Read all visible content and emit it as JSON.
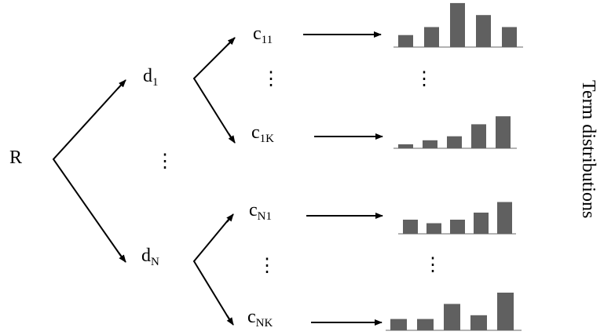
{
  "root": {
    "main": "R",
    "sub": ""
  },
  "level1": [
    {
      "main": "d",
      "sub": "1"
    },
    {
      "main": "d",
      "sub": "N"
    }
  ],
  "level2": [
    {
      "main": "c",
      "sub": "11"
    },
    {
      "main": "c",
      "sub": "1K"
    },
    {
      "main": "c",
      "sub": "N1"
    },
    {
      "main": "c",
      "sub": "NK"
    }
  ],
  "ellipsis": "⋮",
  "side_label": "Term distributions",
  "bar_color": "#606060",
  "baseline_color": "#9a9a9a",
  "distributions": [
    {
      "for": "c11",
      "values": [
        3,
        5,
        11,
        8,
        5
      ]
    },
    {
      "for": "c1K",
      "values": [
        1,
        2,
        3,
        6,
        8
      ]
    },
    {
      "for": "cN1",
      "values": [
        4,
        3,
        4,
        6,
        9
      ]
    },
    {
      "for": "cNK",
      "values": [
        3,
        3,
        7,
        4,
        10
      ]
    }
  ]
}
